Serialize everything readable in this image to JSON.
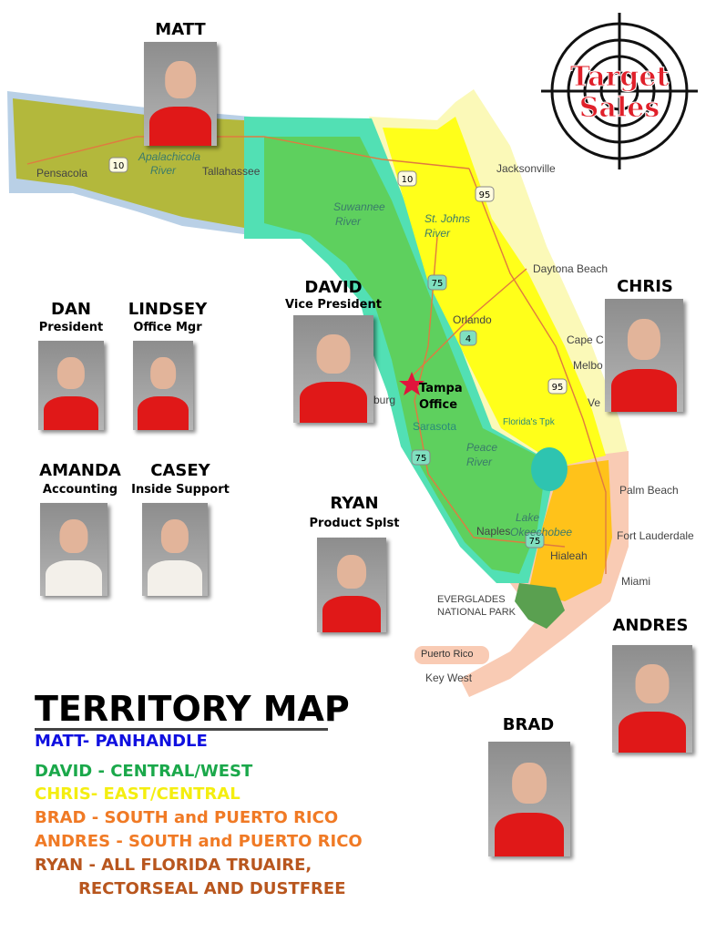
{
  "logo": {
    "text_line1": "Target",
    "text_line2": "Sales",
    "icon": "crosshair-target-icon"
  },
  "people": [
    {
      "name": "MATT",
      "role": ""
    },
    {
      "name": "DAN",
      "role": "President"
    },
    {
      "name": "LINDSEY",
      "role": "Office Mgr"
    },
    {
      "name": "AMANDA",
      "role": "Accounting"
    },
    {
      "name": "CASEY",
      "role": "Inside Support"
    },
    {
      "name": "DAVID",
      "role": "Vice President"
    },
    {
      "name": "RYAN",
      "role": "Product Splst"
    },
    {
      "name": "CHRIS",
      "role": ""
    },
    {
      "name": "ANDRES",
      "role": ""
    },
    {
      "name": "BRAD",
      "role": ""
    }
  ],
  "map_labels": {
    "pensacola": "Pensacola",
    "apalachicola1": "Apalachicola",
    "apalachicola2": "River",
    "tallahassee": "Tallahassee",
    "suwannee1": "Suwannee",
    "suwannee2": "River",
    "stjohns1": "St. Johns",
    "stjohns2": "River",
    "jacksonville": "Jacksonville",
    "daytona": "Daytona Beach",
    "orlando": "Orlando",
    "cape": "Cape C",
    "melbourne": "Melbo",
    "vero": "Ve",
    "tampa1": "Tampa",
    "tampa2": "Office",
    "burg": "burg",
    "sarasota": "Sarasota",
    "turnpike": "Florida's Tpk",
    "peace1": "Peace",
    "peace2": "River",
    "lake1": "Lake",
    "lake2": "Okeechobee",
    "palm_beach": "Palm Beach",
    "fort_lauderdale": "Fort Lauderdale",
    "naples": "Naples",
    "hialeah": "Hialeah",
    "miami": "Miami",
    "everglades1": "EVERGLADES",
    "everglades2": "NATIONAL PARK",
    "puerto_rico": "Puerto Rico",
    "key_west": "Key West"
  },
  "highways": [
    "10",
    "10",
    "95",
    "75",
    "4",
    "95",
    "75",
    "75"
  ],
  "territory_colors": {
    "panhandle": "#b3b83c",
    "panhandle_halo": "#b9d0e6",
    "central_west": "#5ed05e",
    "central_west_halo": "#52e0b4",
    "east_central": "#ffff1a",
    "east_central_halo": "#fbf9b8",
    "south": "#ffc21a",
    "south_halo": "#f9cbb4"
  },
  "legend": {
    "title": "TERRITORY MAP",
    "items": [
      {
        "text": "MATT- PANHANDLE",
        "color": "#1010e0"
      },
      {
        "text": "DAVID - CENTRAL/WEST",
        "color": "#1aa84a"
      },
      {
        "text": "CHRIS- EAST/CENTRAL",
        "color": "#f4ee10"
      },
      {
        "text": "BRAD - SOUTH and PUERTO RICO",
        "color": "#f07a25"
      },
      {
        "text": "ANDRES - SOUTH and PUERTO RICO",
        "color": "#f07a25"
      },
      {
        "text": "RYAN - ALL FLORIDA TRUAIRE,",
        "color": "#b8561e"
      },
      {
        "text": "RECTORSEAL AND DUSTFREE",
        "color": "#b8561e"
      }
    ]
  }
}
